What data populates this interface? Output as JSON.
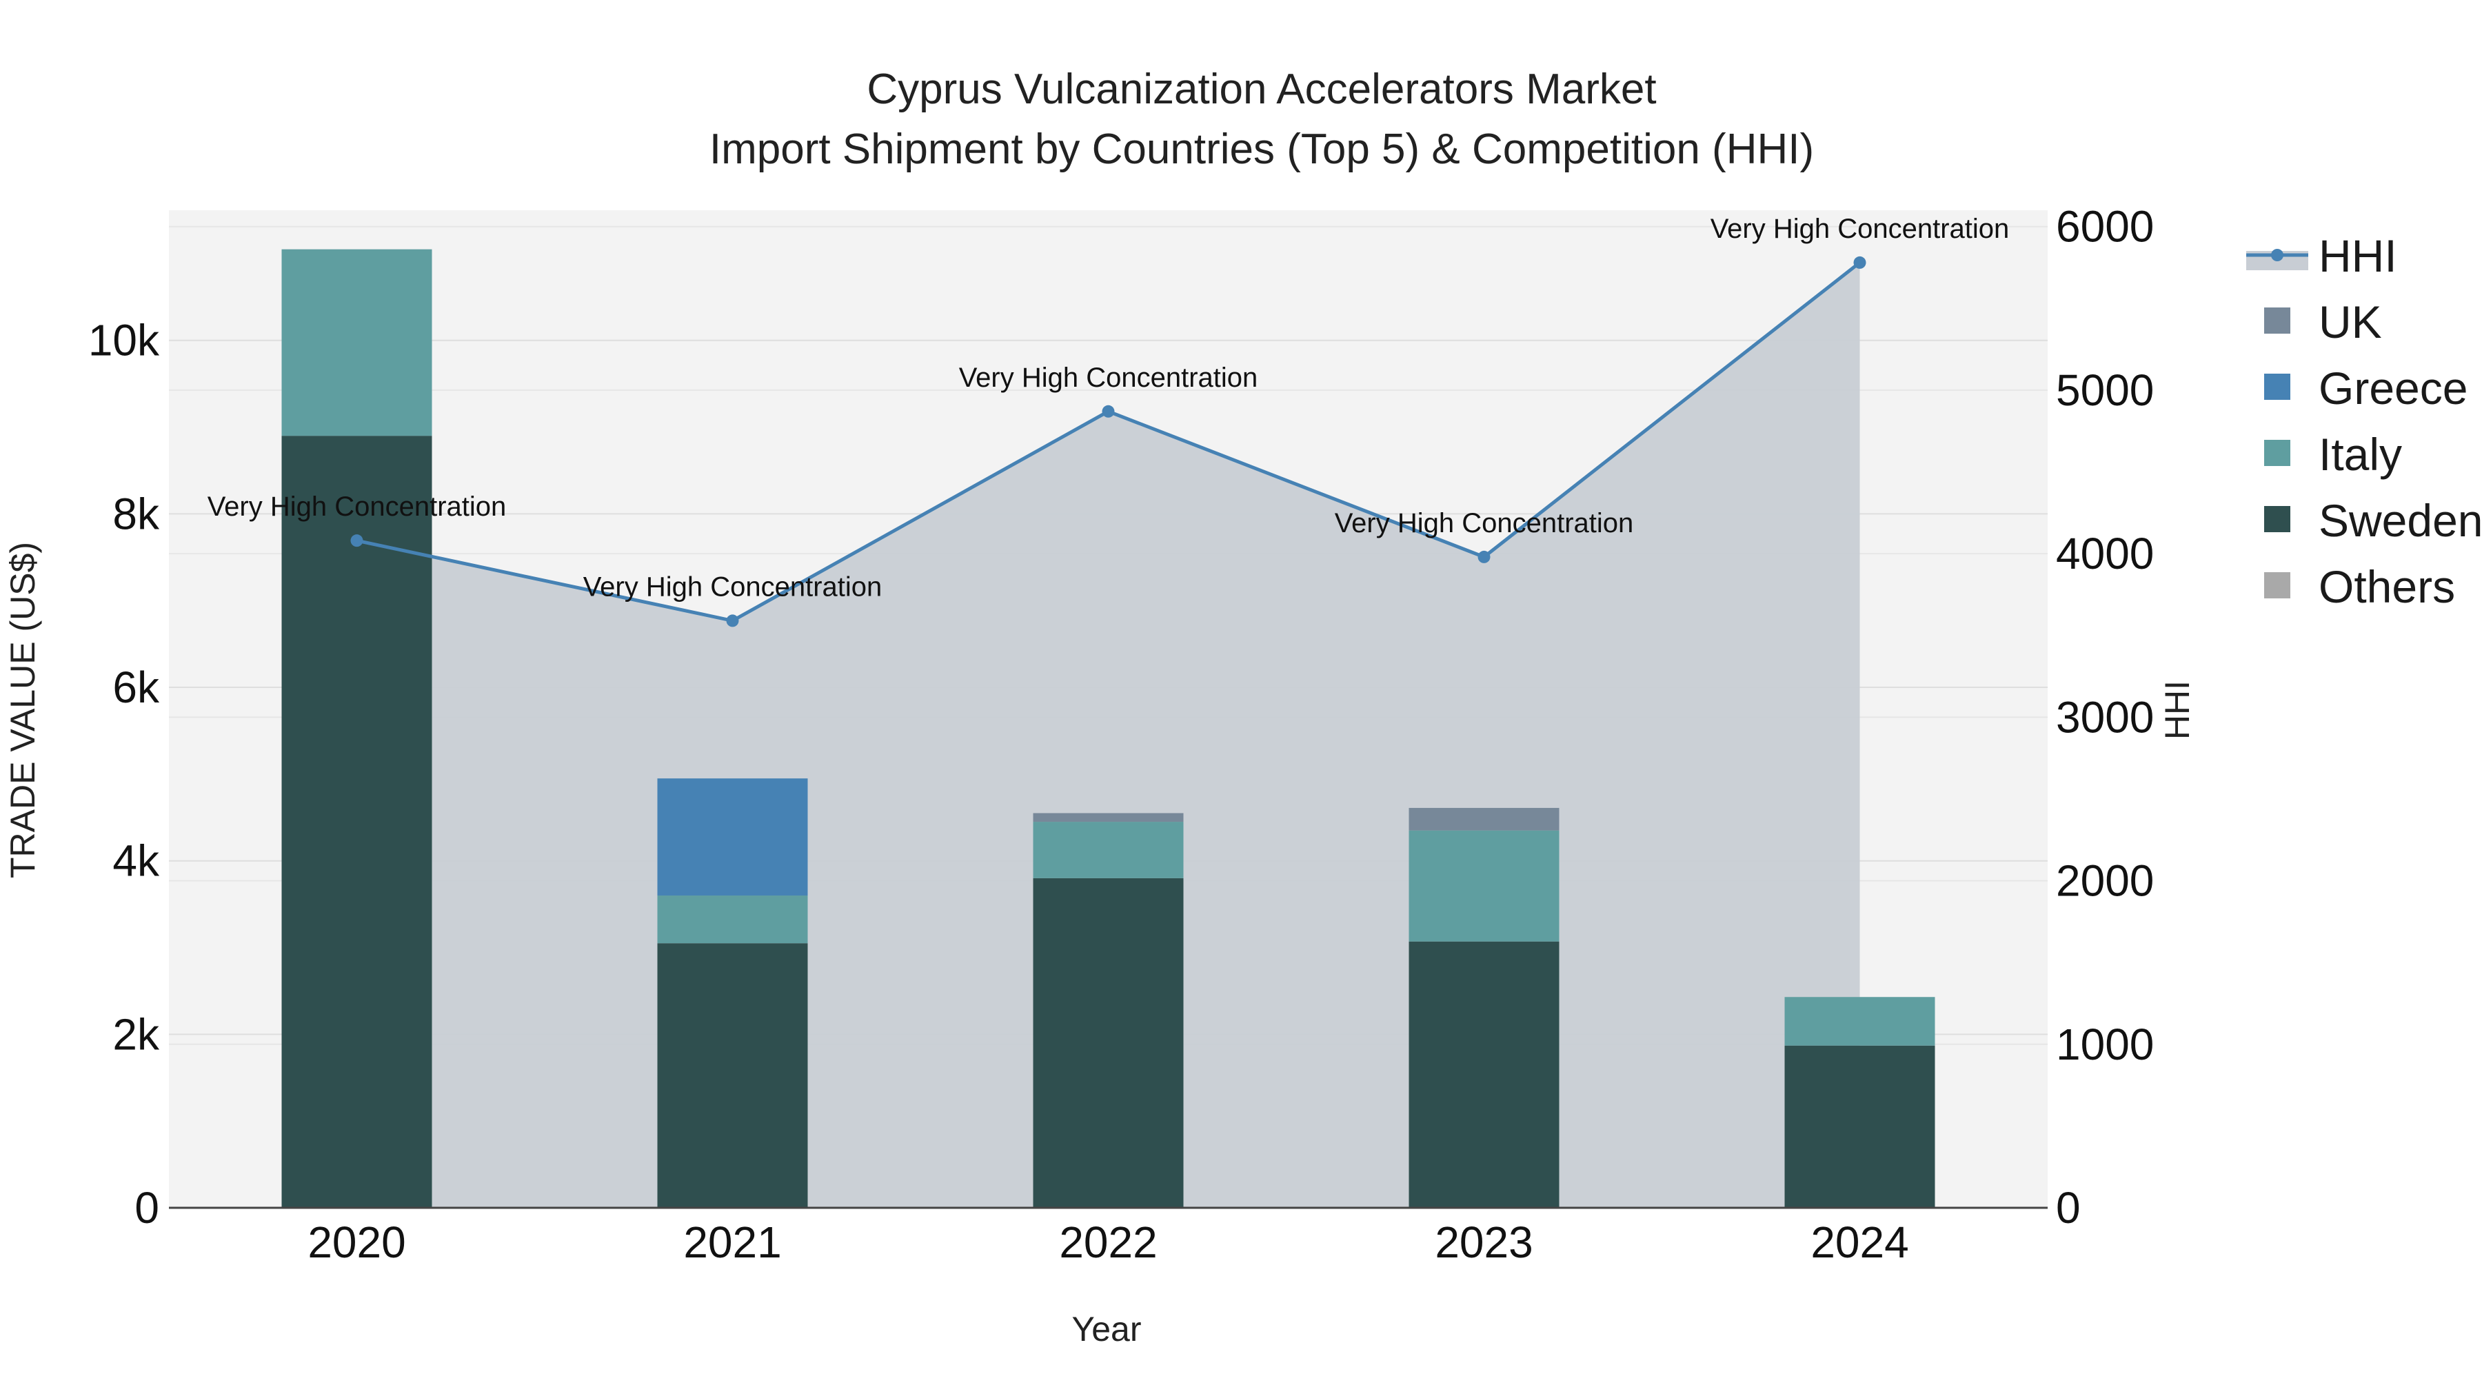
{
  "chart_data": {
    "type": "bar",
    "title": "Cyprus Vulcanization Accelerators Market",
    "subtitle": "Import Shipment by Countries (Top 5) & Competition (HHI)",
    "xlabel": "Year",
    "ylabel": "TRADE VALUE (US$)",
    "y2label": "HHI",
    "categories": [
      "2020",
      "2021",
      "2022",
      "2023",
      "2024"
    ],
    "ylim": [
      0,
      11500
    ],
    "y2lim": [
      0,
      6100
    ],
    "yticks": [
      0,
      2000,
      4000,
      6000,
      8000,
      10000
    ],
    "ytick_labels": [
      "0",
      "2k",
      "4k",
      "6k",
      "8k",
      "10k"
    ],
    "y2ticks": [
      0,
      1000,
      2000,
      3000,
      4000,
      5000,
      6000
    ],
    "y2tick_labels": [
      "0",
      "1000",
      "2000",
      "3000",
      "4000",
      "5000",
      "6000"
    ],
    "series": [
      {
        "name": "Sweden",
        "color": "#2f4f4f",
        "values": [
          8900,
          3050,
          3800,
          3070,
          1870
        ]
      },
      {
        "name": "Italy",
        "color": "#5f9ea0",
        "values": [
          2150,
          550,
          650,
          1280,
          560
        ]
      },
      {
        "name": "Greece",
        "color": "#4682b4",
        "values": [
          0,
          1350,
          0,
          0,
          0
        ]
      },
      {
        "name": "UK",
        "color": "#778899",
        "values": [
          0,
          0,
          100,
          260,
          0
        ]
      },
      {
        "name": "Others",
        "color": "#a9a9a9",
        "values": [
          0,
          0,
          0,
          0,
          0
        ]
      }
    ],
    "hhi": {
      "name": "HHI",
      "color": "#4682b4",
      "fill_color": "#c8cdd4",
      "values": [
        4080,
        3590,
        4870,
        3980,
        5780
      ],
      "annotations": [
        "Very High Concentration",
        "Very High Concentration",
        "Very High Concentration",
        "Very High Concentration",
        "Very High Concentration"
      ]
    },
    "legend": [
      "HHI",
      "UK",
      "Greece",
      "Italy",
      "Sweden",
      "Others"
    ],
    "legend_position": "top-right"
  }
}
